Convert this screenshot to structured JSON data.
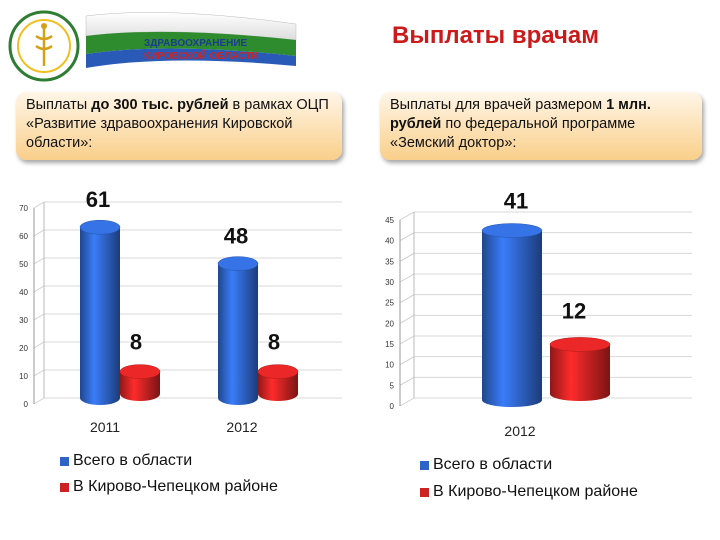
{
  "title": "Выплаты врачам",
  "logo": {
    "line1": "ЗДРАВООХРАНЕНИЕ",
    "line2": "КИРОВСКОЙ ОБЛАСТИ"
  },
  "panels": {
    "left": {
      "text_a": "Выплаты ",
      "text_b": "до 300 тыс. рублей",
      "text_c": "  в рамках ОЦП «Развитие здравоохранения Кировской области»:"
    },
    "right": {
      "text_a": "Выплаты  для врачей размером ",
      "text_b": "1 млн. рублей",
      "text_c": " по федеральной программе «Земский доктор»:"
    }
  },
  "colors": {
    "series1": "#2e64c8",
    "series2": "#cc2222",
    "title": "#cc1a1a"
  },
  "chart_data": [
    {
      "type": "bar",
      "categories": [
        "2011",
        "2012"
      ],
      "series": [
        {
          "name": "Всего в области",
          "values": [
            61,
            48
          ]
        },
        {
          "name": "В Кирово-Чепецком районе",
          "values": [
            8,
            8
          ]
        }
      ],
      "ylim": [
        0,
        70
      ],
      "yticks": [
        "0",
        "10",
        "20",
        "30",
        "40",
        "50",
        "60",
        "70"
      ],
      "grid": true,
      "legend": "bottom"
    },
    {
      "type": "bar",
      "categories": [
        "2012"
      ],
      "series": [
        {
          "name": "Всего в области",
          "values": [
            41
          ]
        },
        {
          "name": "В Кирово-Чепецком районе",
          "values": [
            12
          ]
        }
      ],
      "ylim": [
        0,
        45
      ],
      "yticks": [
        "0",
        "5",
        "10",
        "15",
        "20",
        "25",
        "30",
        "35",
        "40",
        "45"
      ],
      "grid": true,
      "legend": "bottom"
    }
  ]
}
